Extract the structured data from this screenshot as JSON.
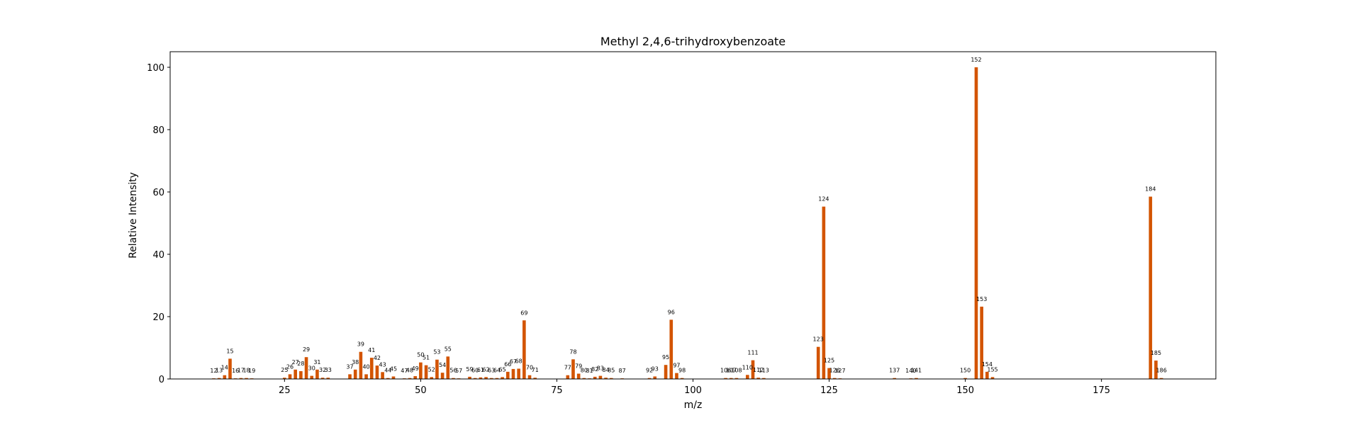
{
  "chart_data": {
    "type": "bar",
    "title": "Methyl 2,4,6-trihydroxybenzoate",
    "xlabel": "m/z",
    "ylabel": "Relative Intensity",
    "xlim": [
      4,
      196
    ],
    "ylim": [
      0,
      105
    ],
    "xticks": [
      25,
      50,
      75,
      100,
      125,
      150,
      175
    ],
    "yticks": [
      0,
      20,
      40,
      60,
      80,
      100
    ],
    "grid": false,
    "bar_color": "#d35400",
    "peaks": [
      {
        "mz": 12,
        "intensity": 0.2
      },
      {
        "mz": 13,
        "intensity": 0.3
      },
      {
        "mz": 14,
        "intensity": 1.2
      },
      {
        "mz": 15,
        "intensity": 6.5
      },
      {
        "mz": 16,
        "intensity": 0.2
      },
      {
        "mz": 17,
        "intensity": 0.3
      },
      {
        "mz": 18,
        "intensity": 0.3
      },
      {
        "mz": 19,
        "intensity": 0.2
      },
      {
        "mz": 25,
        "intensity": 0.4
      },
      {
        "mz": 26,
        "intensity": 1.5
      },
      {
        "mz": 27,
        "intensity": 3.0
      },
      {
        "mz": 28,
        "intensity": 2.5
      },
      {
        "mz": 29,
        "intensity": 7.0
      },
      {
        "mz": 30,
        "intensity": 1.0
      },
      {
        "mz": 31,
        "intensity": 3.0
      },
      {
        "mz": 32,
        "intensity": 0.4
      },
      {
        "mz": 33,
        "intensity": 0.4
      },
      {
        "mz": 37,
        "intensity": 1.5
      },
      {
        "mz": 38,
        "intensity": 3.0
      },
      {
        "mz": 39,
        "intensity": 8.7
      },
      {
        "mz": 40,
        "intensity": 1.5
      },
      {
        "mz": 41,
        "intensity": 6.8
      },
      {
        "mz": 42,
        "intensity": 4.3
      },
      {
        "mz": 43,
        "intensity": 2.2
      },
      {
        "mz": 44,
        "intensity": 0.3
      },
      {
        "mz": 45,
        "intensity": 0.8
      },
      {
        "mz": 47,
        "intensity": 0.2
      },
      {
        "mz": 48,
        "intensity": 0.3
      },
      {
        "mz": 49,
        "intensity": 0.9
      },
      {
        "mz": 50,
        "intensity": 5.3
      },
      {
        "mz": 51,
        "intensity": 4.4
      },
      {
        "mz": 52,
        "intensity": 0.6
      },
      {
        "mz": 53,
        "intensity": 6.2
      },
      {
        "mz": 54,
        "intensity": 2.0
      },
      {
        "mz": 55,
        "intensity": 7.2
      },
      {
        "mz": 56,
        "intensity": 0.3
      },
      {
        "mz": 57,
        "intensity": 0.2
      },
      {
        "mz": 59,
        "intensity": 0.7
      },
      {
        "mz": 60,
        "intensity": 0.3
      },
      {
        "mz": 61,
        "intensity": 0.5
      },
      {
        "mz": 62,
        "intensity": 0.6
      },
      {
        "mz": 63,
        "intensity": 0.3
      },
      {
        "mz": 64,
        "intensity": 0.3
      },
      {
        "mz": 65,
        "intensity": 0.6
      },
      {
        "mz": 66,
        "intensity": 2.3
      },
      {
        "mz": 67,
        "intensity": 3.2
      },
      {
        "mz": 68,
        "intensity": 3.3
      },
      {
        "mz": 69,
        "intensity": 18.8
      },
      {
        "mz": 70,
        "intensity": 1.2
      },
      {
        "mz": 71,
        "intensity": 0.4
      },
      {
        "mz": 77,
        "intensity": 1.2
      },
      {
        "mz": 78,
        "intensity": 6.3
      },
      {
        "mz": 79,
        "intensity": 1.7
      },
      {
        "mz": 80,
        "intensity": 0.3
      },
      {
        "mz": 81,
        "intensity": 0.2
      },
      {
        "mz": 82,
        "intensity": 0.7
      },
      {
        "mz": 83,
        "intensity": 1.0
      },
      {
        "mz": 84,
        "intensity": 0.4
      },
      {
        "mz": 85,
        "intensity": 0.3
      },
      {
        "mz": 87,
        "intensity": 0.2
      },
      {
        "mz": 92,
        "intensity": 0.3
      },
      {
        "mz": 93,
        "intensity": 0.8
      },
      {
        "mz": 95,
        "intensity": 4.5
      },
      {
        "mz": 96,
        "intensity": 19.0
      },
      {
        "mz": 97,
        "intensity": 1.9
      },
      {
        "mz": 98,
        "intensity": 0.3
      },
      {
        "mz": 106,
        "intensity": 0.3
      },
      {
        "mz": 107,
        "intensity": 0.3
      },
      {
        "mz": 108,
        "intensity": 0.3
      },
      {
        "mz": 110,
        "intensity": 1.3
      },
      {
        "mz": 111,
        "intensity": 6.0
      },
      {
        "mz": 112,
        "intensity": 0.4
      },
      {
        "mz": 113,
        "intensity": 0.3
      },
      {
        "mz": 123,
        "intensity": 10.3
      },
      {
        "mz": 124,
        "intensity": 55.3
      },
      {
        "mz": 125,
        "intensity": 3.5
      },
      {
        "mz": 126,
        "intensity": 0.3
      },
      {
        "mz": 127,
        "intensity": 0.2
      },
      {
        "mz": 137,
        "intensity": 0.3
      },
      {
        "mz": 140,
        "intensity": 0.2
      },
      {
        "mz": 141,
        "intensity": 0.3
      },
      {
        "mz": 150,
        "intensity": 0.3
      },
      {
        "mz": 152,
        "intensity": 100.0
      },
      {
        "mz": 153,
        "intensity": 23.2
      },
      {
        "mz": 154,
        "intensity": 2.3
      },
      {
        "mz": 155,
        "intensity": 0.6
      },
      {
        "mz": 184,
        "intensity": 58.5
      },
      {
        "mz": 185,
        "intensity": 5.9
      },
      {
        "mz": 186,
        "intensity": 0.3
      }
    ]
  }
}
